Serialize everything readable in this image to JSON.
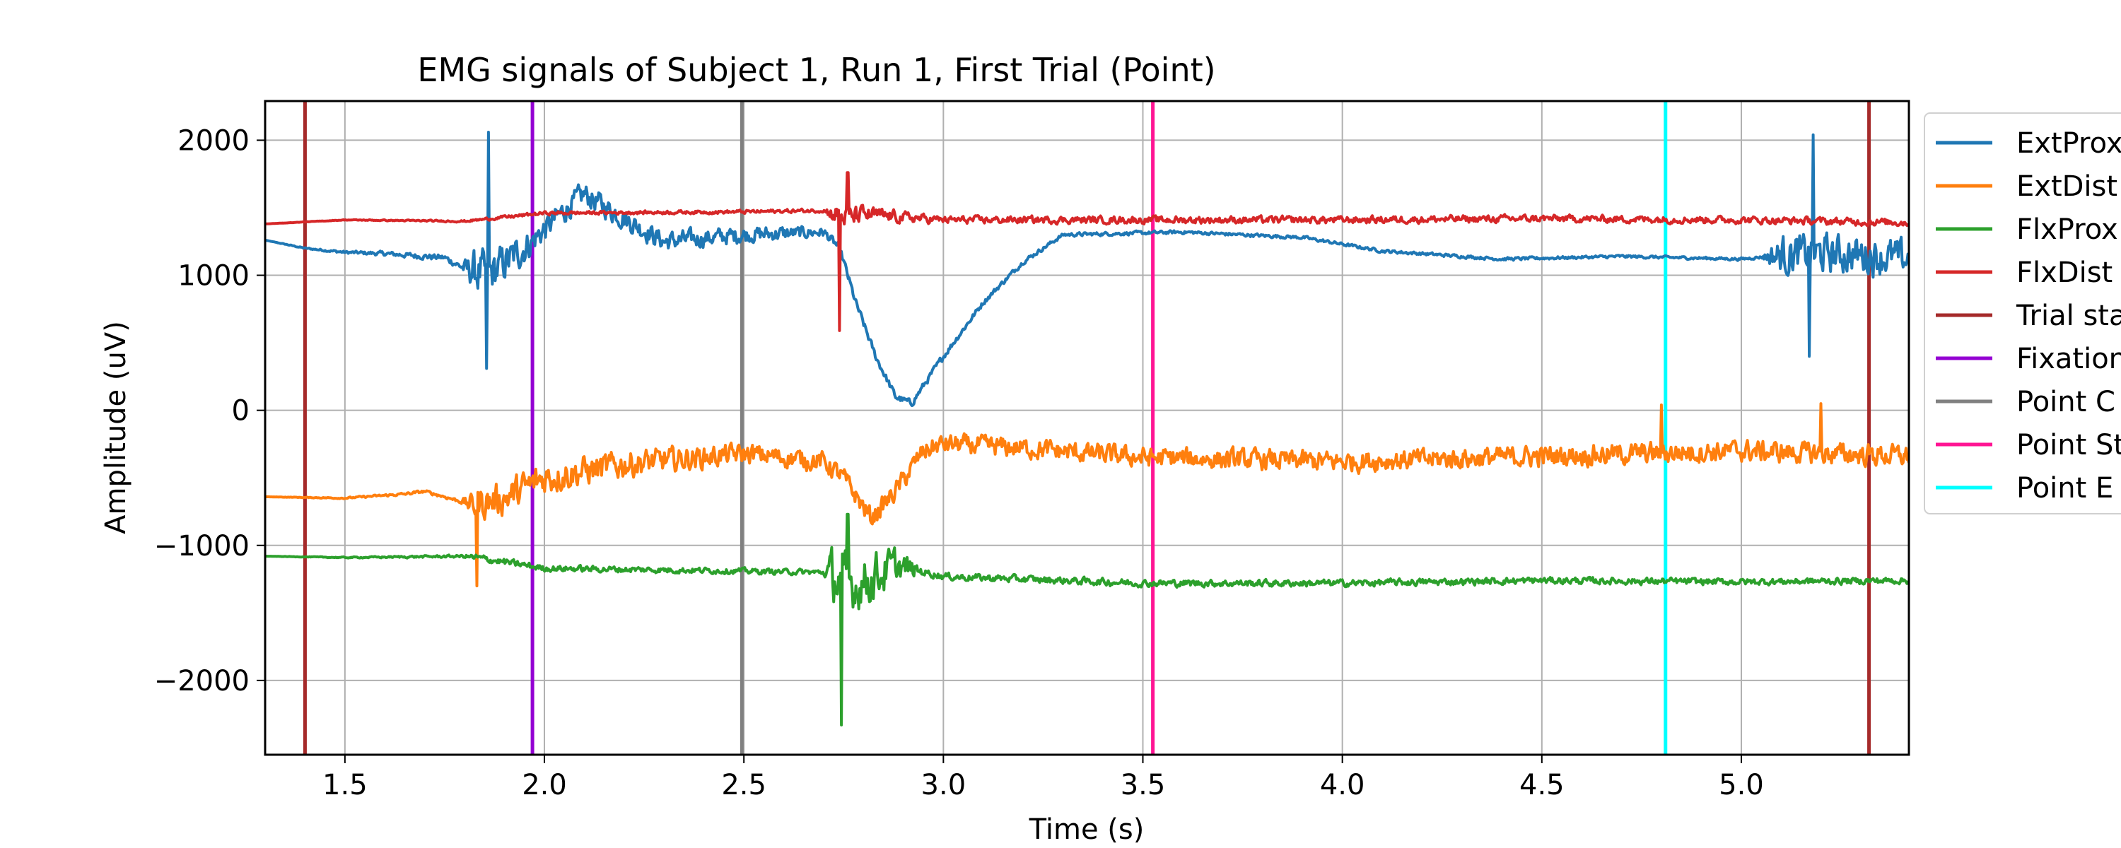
{
  "chart_data": {
    "type": "line",
    "title": "EMG signals of Subject 1, Run 1, First Trial (Point)",
    "xlabel": "Time (s)",
    "ylabel": "Amplitude (uV)",
    "xlim": [
      1.3,
      5.42
    ],
    "ylim": [
      -2550,
      2290
    ],
    "grid": true,
    "legend_position": "outside-right, partially clipped",
    "x_ticks": [
      1.5,
      2.0,
      2.5,
      3.0,
      3.5,
      4.0,
      4.5,
      5.0
    ],
    "x_tick_labels": [
      "1.5",
      "2.0",
      "2.5",
      "3.0",
      "3.5",
      "4.0",
      "4.5",
      "5.0"
    ],
    "y_ticks": [
      2000,
      1000,
      0,
      -1000,
      -2000
    ],
    "y_tick_labels": [
      "2000",
      "1000",
      "0",
      "−1000",
      "−2000"
    ],
    "series": [
      {
        "name": "ExtProx",
        "color": "#1f77b4",
        "noise": [
          [
            1.3,
            0
          ],
          [
            1.79,
            40
          ],
          [
            1.83,
            260
          ],
          [
            2.0,
            140
          ],
          [
            2.6,
            80
          ],
          [
            2.72,
            50
          ],
          [
            3.3,
            20
          ],
          [
            5.05,
            15
          ],
          [
            5.1,
            220
          ],
          [
            5.42,
            200
          ]
        ],
        "x": [
          1.3,
          1.4,
          1.5,
          1.6,
          1.75,
          1.8,
          1.86,
          1.95,
          2.05,
          2.1,
          2.2,
          2.3,
          2.5,
          2.7,
          2.74,
          2.78,
          2.83,
          2.88,
          2.92,
          3.0,
          3.1,
          3.2,
          3.3,
          3.6,
          3.9,
          4.1,
          4.4,
          4.7,
          5.0,
          5.1,
          5.2,
          5.3,
          5.42
        ],
        "y": [
          1260,
          1200,
          1170,
          1160,
          1130,
          1050,
          1000,
          1200,
          1480,
          1600,
          1420,
          1250,
          1300,
          1320,
          1200,
          800,
          400,
          100,
          50,
          400,
          800,
          1100,
          1300,
          1320,
          1280,
          1180,
          1120,
          1140,
          1120,
          1150,
          1160,
          1150,
          1120
        ]
      },
      {
        "name": "ExtDist",
        "color": "#ff7f0e",
        "noise": [
          [
            1.3,
            0
          ],
          [
            1.79,
            20
          ],
          [
            1.83,
            180
          ],
          [
            2.0,
            180
          ],
          [
            2.5,
            110
          ],
          [
            3.0,
            110
          ],
          [
            5.42,
            120
          ]
        ],
        "x": [
          1.3,
          1.5,
          1.65,
          1.7,
          1.75,
          1.82,
          1.9,
          2.0,
          2.1,
          2.2,
          2.5,
          2.7,
          2.75,
          2.82,
          2.88,
          2.95,
          3.0,
          3.2,
          3.5,
          4.0,
          4.5,
          5.0,
          5.42
        ],
        "y": [
          -640,
          -650,
          -620,
          -600,
          -640,
          -700,
          -650,
          -500,
          -450,
          -400,
          -320,
          -380,
          -500,
          -800,
          -600,
          -300,
          -250,
          -280,
          -350,
          -380,
          -340,
          -300,
          -340
        ]
      },
      {
        "name": "FlxProx",
        "color": "#2ca02c",
        "noise": [
          [
            1.3,
            0
          ],
          [
            1.79,
            15
          ],
          [
            1.83,
            40
          ],
          [
            2.0,
            35
          ],
          [
            2.7,
            30
          ],
          [
            2.72,
            300
          ],
          [
            2.85,
            250
          ],
          [
            2.95,
            40
          ],
          [
            5.42,
            35
          ]
        ],
        "x": [
          1.3,
          1.5,
          1.8,
          1.85,
          2.0,
          2.5,
          2.7,
          2.78,
          2.88,
          3.0,
          3.5,
          4.0,
          4.5,
          5.0,
          5.42
        ],
        "y": [
          -1080,
          -1090,
          -1080,
          -1100,
          -1170,
          -1190,
          -1200,
          -1300,
          -1150,
          -1230,
          -1280,
          -1280,
          -1260,
          -1270,
          -1260
        ]
      },
      {
        "name": "FlxDist",
        "color": "#d62728",
        "noise": [
          [
            1.3,
            0
          ],
          [
            1.8,
            10
          ],
          [
            1.9,
            18
          ],
          [
            2.7,
            20
          ],
          [
            2.73,
            120
          ],
          [
            2.9,
            60
          ],
          [
            3.0,
            40
          ],
          [
            5.42,
            40
          ]
        ],
        "x": [
          1.3,
          1.5,
          1.8,
          2.0,
          2.5,
          2.7,
          2.75,
          2.8,
          3.0,
          3.5,
          4.0,
          4.5,
          5.0,
          5.42
        ],
        "y": [
          1380,
          1410,
          1400,
          1460,
          1470,
          1480,
          1430,
          1450,
          1410,
          1410,
          1410,
          1420,
          1410,
          1390
        ]
      }
    ],
    "event_lines": [
      {
        "name": "Trial start",
        "label": "Trial sta",
        "color": "#a52a2a",
        "x": [
          1.4,
          5.32
        ]
      },
      {
        "name": "Fixation",
        "label": "Fixation",
        "color": "#9400d3",
        "x": [
          1.97
        ]
      },
      {
        "name": "Point Cue",
        "label": "Point C",
        "color": "#808080",
        "x": [
          2.495
        ]
      },
      {
        "name": "Point Start",
        "label": "Point St",
        "color": "#ff1493",
        "x": [
          3.525
        ]
      },
      {
        "name": "Point End",
        "label": "Point E",
        "color": "#00ffff",
        "x": [
          4.81
        ]
      }
    ],
    "spikes": [
      {
        "series": "ExtProx",
        "x": 1.855,
        "y": 310
      },
      {
        "series": "ExtProx",
        "x": 1.86,
        "y": 2060
      },
      {
        "series": "ExtProx",
        "x": 5.18,
        "y": 2040
      },
      {
        "series": "ExtProx",
        "x": 5.17,
        "y": 400
      },
      {
        "series": "FlxDist",
        "x": 2.74,
        "y": 590
      },
      {
        "series": "FlxDist",
        "x": 2.76,
        "y": 1760
      },
      {
        "series": "FlxProx",
        "x": 2.745,
        "y": -2330
      },
      {
        "series": "FlxProx",
        "x": 2.76,
        "y": -770
      },
      {
        "series": "ExtDist",
        "x": 1.83,
        "y": -1300
      },
      {
        "series": "ExtDist",
        "x": 4.8,
        "y": 40
      },
      {
        "series": "ExtDist",
        "x": 5.2,
        "y": 50
      }
    ]
  }
}
